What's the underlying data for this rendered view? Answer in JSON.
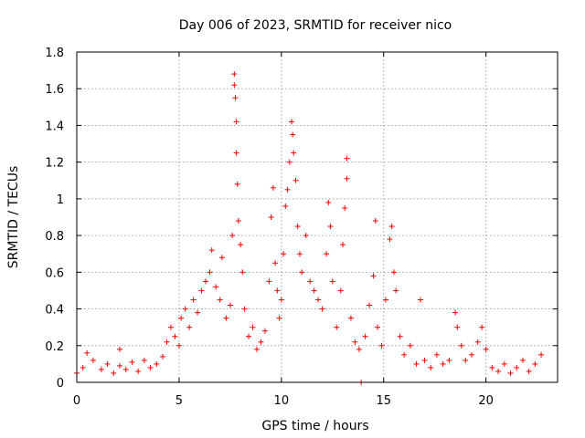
{
  "chart_data": {
    "type": "scatter",
    "title": "Day 006 of 2023, SRMTID for receiver nico",
    "xlabel": "GPS time / hours",
    "ylabel": "SRMTID / TECUs",
    "xlim": [
      0,
      23.5
    ],
    "ylim": [
      0,
      1.8
    ],
    "xticks": [
      0,
      5,
      10,
      15,
      20
    ],
    "xtick_labels": [
      "0",
      "5",
      "10",
      "15",
      "20"
    ],
    "yticks": [
      0,
      0.2,
      0.4,
      0.6,
      0.8,
      1,
      1.2,
      1.4,
      1.6,
      1.8
    ],
    "ytick_labels": [
      "0",
      "0.2",
      "0.4",
      "0.6",
      "0.8",
      "1",
      "1.2",
      "1.4",
      "1.6",
      "1.8"
    ],
    "grid": true,
    "marker": "plus",
    "color": "#ff0000",
    "series": [
      {
        "name": "SRMTID",
        "points": [
          [
            0.0,
            0.05
          ],
          [
            0.3,
            0.08
          ],
          [
            0.5,
            0.16
          ],
          [
            0.8,
            0.12
          ],
          [
            1.2,
            0.07
          ],
          [
            1.5,
            0.1
          ],
          [
            1.8,
            0.05
          ],
          [
            2.1,
            0.09
          ],
          [
            2.4,
            0.07
          ],
          [
            2.7,
            0.11
          ],
          [
            2.1,
            0.18
          ],
          [
            3.0,
            0.06
          ],
          [
            3.3,
            0.12
          ],
          [
            3.6,
            0.08
          ],
          [
            3.9,
            0.1
          ],
          [
            4.2,
            0.14
          ],
          [
            4.4,
            0.22
          ],
          [
            4.6,
            0.3
          ],
          [
            4.8,
            0.25
          ],
          [
            5.0,
            0.2
          ],
          [
            5.1,
            0.35
          ],
          [
            5.3,
            0.4
          ],
          [
            5.5,
            0.3
          ],
          [
            5.7,
            0.45
          ],
          [
            5.9,
            0.38
          ],
          [
            6.1,
            0.5
          ],
          [
            6.3,
            0.55
          ],
          [
            6.5,
            0.6
          ],
          [
            6.6,
            0.72
          ],
          [
            6.8,
            0.52
          ],
          [
            7.0,
            0.45
          ],
          [
            7.1,
            0.68
          ],
          [
            7.3,
            0.35
          ],
          [
            7.5,
            0.42
          ],
          [
            7.6,
            0.8
          ],
          [
            7.7,
            1.68
          ],
          [
            7.7,
            1.62
          ],
          [
            7.75,
            1.55
          ],
          [
            7.8,
            1.42
          ],
          [
            7.8,
            1.25
          ],
          [
            7.85,
            1.08
          ],
          [
            7.9,
            0.88
          ],
          [
            8.0,
            0.75
          ],
          [
            8.1,
            0.6
          ],
          [
            8.2,
            0.4
          ],
          [
            8.4,
            0.25
          ],
          [
            8.6,
            0.3
          ],
          [
            8.8,
            0.18
          ],
          [
            9.0,
            0.22
          ],
          [
            9.2,
            0.28
          ],
          [
            9.4,
            0.55
          ],
          [
            9.5,
            0.9
          ],
          [
            9.6,
            1.06
          ],
          [
            9.7,
            0.65
          ],
          [
            9.8,
            0.5
          ],
          [
            9.9,
            0.35
          ],
          [
            10.0,
            0.45
          ],
          [
            10.1,
            0.7
          ],
          [
            10.2,
            0.96
          ],
          [
            10.3,
            1.05
          ],
          [
            10.4,
            1.2
          ],
          [
            10.5,
            1.42
          ],
          [
            10.55,
            1.35
          ],
          [
            10.6,
            1.25
          ],
          [
            10.7,
            1.1
          ],
          [
            10.8,
            0.85
          ],
          [
            10.9,
            0.7
          ],
          [
            11.0,
            0.6
          ],
          [
            11.2,
            0.8
          ],
          [
            11.4,
            0.55
          ],
          [
            11.6,
            0.5
          ],
          [
            11.8,
            0.45
          ],
          [
            12.0,
            0.4
          ],
          [
            12.2,
            0.7
          ],
          [
            12.3,
            0.98
          ],
          [
            12.4,
            0.85
          ],
          [
            12.5,
            0.55
          ],
          [
            12.7,
            0.3
          ],
          [
            12.9,
            0.5
          ],
          [
            13.0,
            0.75
          ],
          [
            13.1,
            0.95
          ],
          [
            13.2,
            1.22
          ],
          [
            13.2,
            1.11
          ],
          [
            13.4,
            0.35
          ],
          [
            13.6,
            0.22
          ],
          [
            13.8,
            0.18
          ],
          [
            13.9,
            0.0
          ],
          [
            14.1,
            0.25
          ],
          [
            14.3,
            0.42
          ],
          [
            14.5,
            0.58
          ],
          [
            14.6,
            0.88
          ],
          [
            14.7,
            0.3
          ],
          [
            14.9,
            0.2
          ],
          [
            15.1,
            0.45
          ],
          [
            15.3,
            0.78
          ],
          [
            15.4,
            0.85
          ],
          [
            15.5,
            0.6
          ],
          [
            15.6,
            0.5
          ],
          [
            15.8,
            0.25
          ],
          [
            16.0,
            0.15
          ],
          [
            16.3,
            0.2
          ],
          [
            16.6,
            0.1
          ],
          [
            16.8,
            0.45
          ],
          [
            17.0,
            0.12
          ],
          [
            17.3,
            0.08
          ],
          [
            17.6,
            0.15
          ],
          [
            17.9,
            0.1
          ],
          [
            18.2,
            0.12
          ],
          [
            18.5,
            0.38
          ],
          [
            18.6,
            0.3
          ],
          [
            18.8,
            0.2
          ],
          [
            19.0,
            0.12
          ],
          [
            19.3,
            0.15
          ],
          [
            19.6,
            0.22
          ],
          [
            19.8,
            0.3
          ],
          [
            20.0,
            0.18
          ],
          [
            20.3,
            0.08
          ],
          [
            20.6,
            0.06
          ],
          [
            20.9,
            0.1
          ],
          [
            21.2,
            0.05
          ],
          [
            21.5,
            0.08
          ],
          [
            21.8,
            0.12
          ],
          [
            22.1,
            0.06
          ],
          [
            22.4,
            0.1
          ],
          [
            22.7,
            0.15
          ]
        ]
      }
    ]
  }
}
